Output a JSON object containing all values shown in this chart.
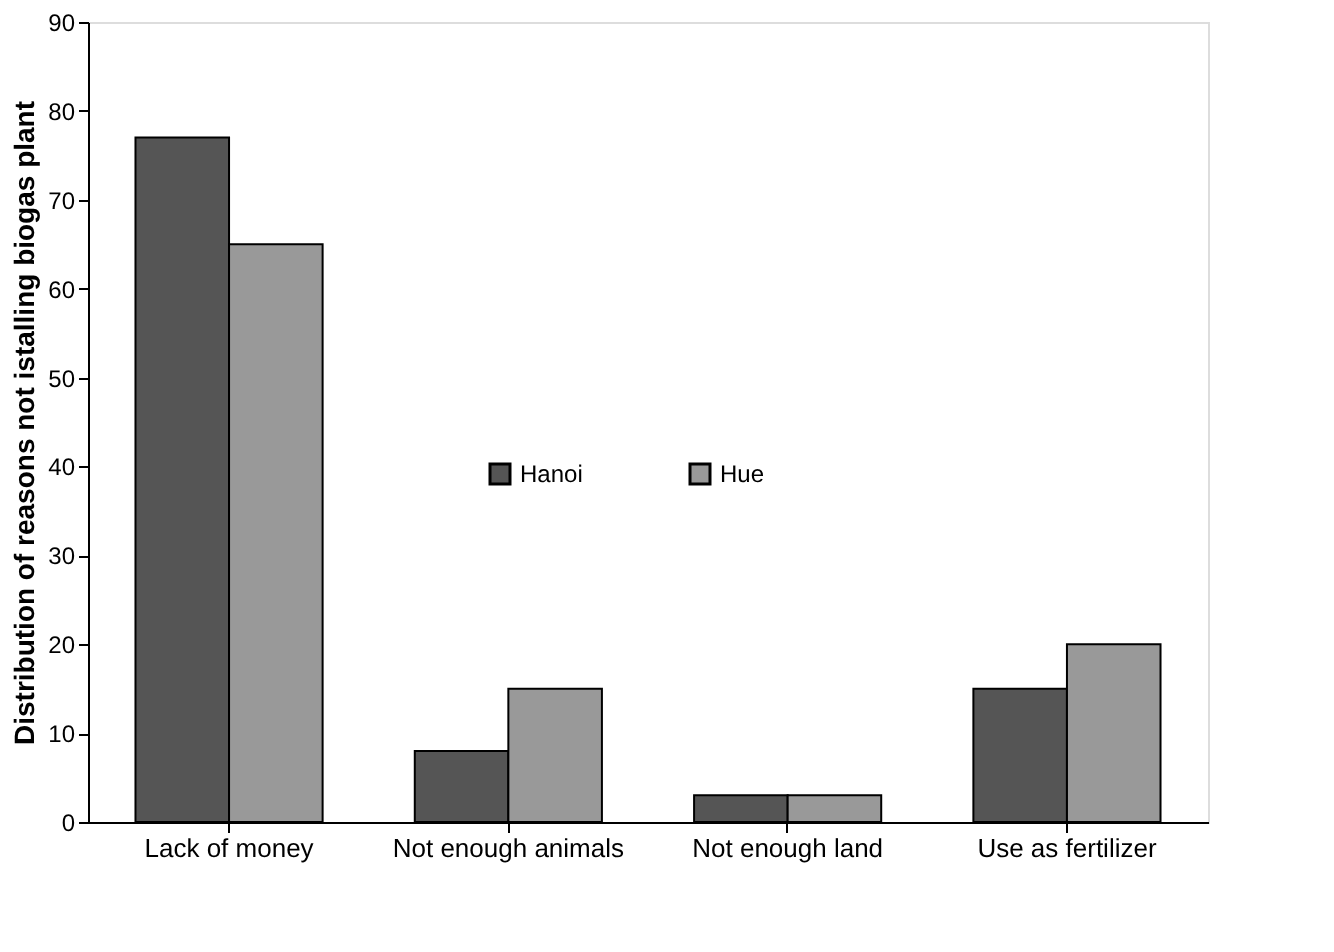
{
  "chart_data": {
    "type": "bar",
    "ylabel": "Distribution of reasons not istalling biogas plant",
    "categories": [
      "Lack of money",
      "Not enough animals",
      "Not enough land",
      "Use as fertilizer"
    ],
    "series": [
      {
        "name": "Hanoi",
        "color": "#555555",
        "values": [
          77,
          8,
          3,
          15
        ]
      },
      {
        "name": "Hue",
        "color": "#999999",
        "values": [
          65,
          15,
          3,
          20
        ]
      }
    ],
    "ylim": [
      0,
      90
    ],
    "yticks": [
      0,
      10,
      20,
      30,
      40,
      50,
      60,
      70,
      80,
      90
    ],
    "grid": false,
    "legend": "center"
  }
}
